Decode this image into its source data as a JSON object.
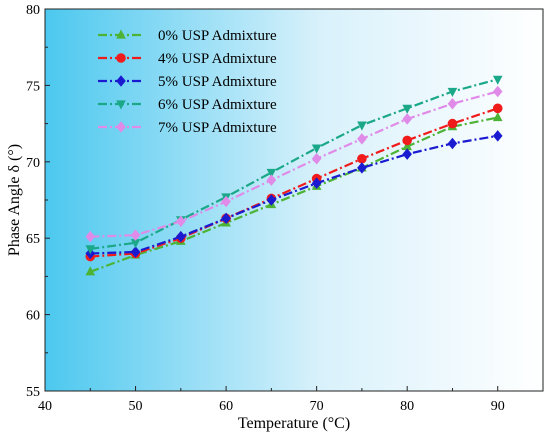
{
  "chart_data": {
    "type": "line",
    "xlabel": "Temperature (°C)",
    "ylabel": "Phase Angle δ (°)",
    "xlim": [
      40,
      95
    ],
    "ylim": [
      55,
      80
    ],
    "xticks": [
      40,
      50,
      60,
      70,
      80,
      90
    ],
    "yticks": [
      55,
      60,
      65,
      70,
      75,
      80
    ],
    "grid": false,
    "background": "horizontal gradient from #4cc8ef (left) to #ffffff (right)",
    "legend_position": "top-left",
    "x": [
      45,
      50,
      55,
      60,
      65,
      70,
      75,
      80,
      85,
      90
    ],
    "series": [
      {
        "name": "0% USP Admixture",
        "color": "#4cb335",
        "marker": "triangle-up",
        "values": [
          62.8,
          63.9,
          64.8,
          66.0,
          67.2,
          68.4,
          69.6,
          71.0,
          72.3,
          72.9
        ]
      },
      {
        "name": "4% USP Admixture",
        "color": "#f01c1c",
        "marker": "circle",
        "values": [
          63.8,
          64.0,
          65.0,
          66.3,
          67.6,
          68.9,
          70.2,
          71.4,
          72.5,
          73.5
        ]
      },
      {
        "name": "5% USP Admixture",
        "color": "#1a1ad0",
        "marker": "diamond",
        "values": [
          64.0,
          64.1,
          65.1,
          66.3,
          67.5,
          68.6,
          69.6,
          70.5,
          71.2,
          71.7
        ]
      },
      {
        "name": "6% USP Admixture",
        "color": "#1aa888",
        "marker": "triangle-down",
        "values": [
          64.3,
          64.7,
          66.2,
          67.7,
          69.3,
          70.9,
          72.4,
          73.5,
          74.6,
          75.4
        ]
      },
      {
        "name": "7% USP Admixture",
        "color": "#e08be8",
        "marker": "diamond",
        "values": [
          65.1,
          65.2,
          66.1,
          67.4,
          68.8,
          70.2,
          71.5,
          72.8,
          73.8,
          74.6
        ]
      }
    ]
  }
}
